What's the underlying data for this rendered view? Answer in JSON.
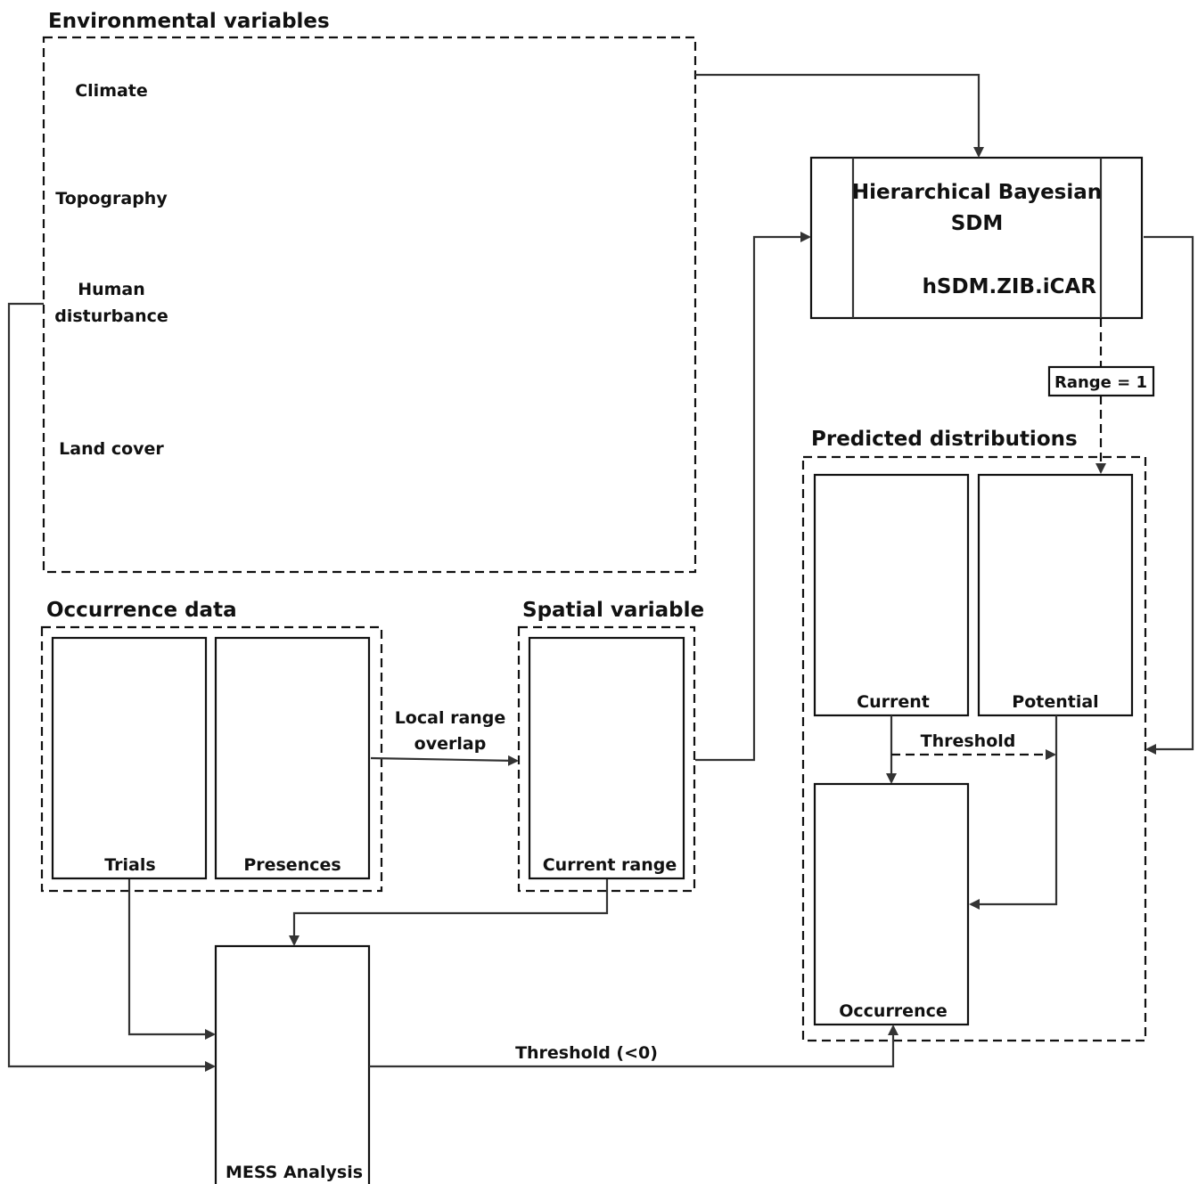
{
  "colors": {
    "map_pale": "#eeeba8",
    "inferno_dark": "#1a0d5e",
    "blue": "#1a1aa8",
    "magenta": "#e023c8",
    "yellow": "#f7f12a",
    "orange": "#f49a2a",
    "purple": "#9a2ad0",
    "occurrence_dark": "#141432"
  },
  "env": {
    "title": "Environmental variables",
    "rows": [
      "Climate",
      "Topography",
      "Human disturbance",
      "Land cover"
    ]
  },
  "occurrence": {
    "title": "Occurrence data",
    "trials": "Trials",
    "presences": "Presences"
  },
  "spatial": {
    "title": "Spatial variable",
    "current_range": "Current range"
  },
  "local_range_overlap": [
    "Local range",
    "overlap"
  ],
  "model": {
    "title_line1": "Hierarchical Bayesian",
    "title_line2": "SDM",
    "name": "hSDM.ZIB.iCAR"
  },
  "range_label": "Range = 1",
  "predicted": {
    "title": "Predicted distributions",
    "current": "Current",
    "potential": "Potential",
    "threshold": "Threshold",
    "occurrence": "Occurrence"
  },
  "mess": {
    "label": "MESS Analysis",
    "threshold": "Threshold (<0)"
  }
}
